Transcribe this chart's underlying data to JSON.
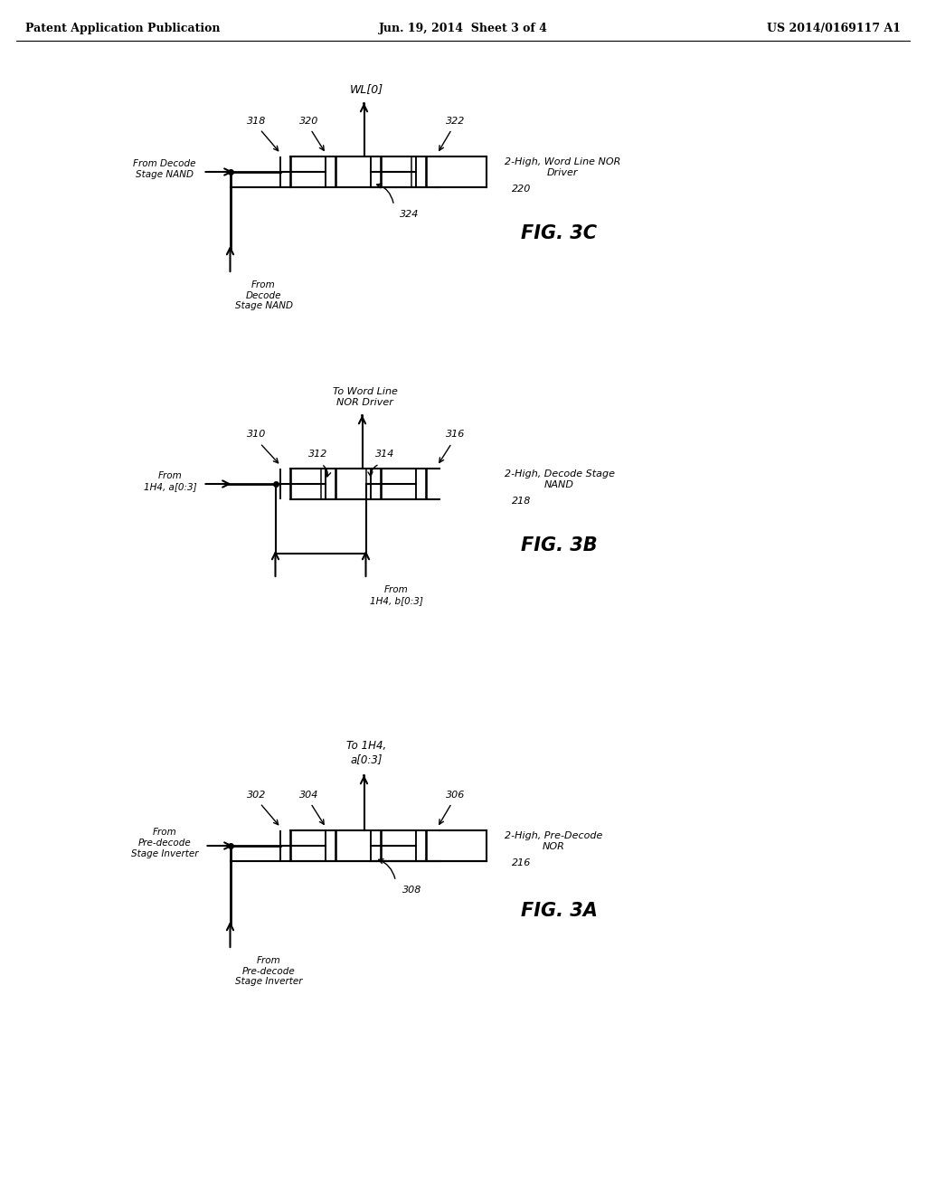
{
  "header_left": "Patent Application Publication",
  "header_mid": "Jun. 19, 2014  Sheet 3 of 4",
  "header_right": "US 2014/0169117 A1",
  "fig3c": {
    "label": "FIG. 3C",
    "circuit_label": "2-High, Word Line NOR\nDriver",
    "circuit_num": "220",
    "ref1": "318",
    "ref2": "320",
    "ref3": "322",
    "ref4": "324",
    "input1": "From Decode\nStage NAND",
    "input2": "From\nDecode\nStage NAND",
    "output": "WL[0]"
  },
  "fig3b": {
    "label": "FIG. 3B",
    "circuit_label": "2-High, Decode Stage\nNAND",
    "circuit_num": "218",
    "ref1": "310",
    "ref2": "312",
    "ref3": "314",
    "ref4": "316",
    "input1": "From\n1H4, a[0:3]",
    "input2": "From\n1H4, b[0:3]",
    "output": "To Word Line\nNOR Driver"
  },
  "fig3a": {
    "label": "FIG. 3A",
    "circuit_label": "2-High, Pre-Decode\nNOR",
    "circuit_num": "216",
    "ref1": "302",
    "ref2": "304",
    "ref3": "306",
    "ref4": "308",
    "input1": "From\nPre-decode\nStage Inverter",
    "input2": "From\nPre-decode\nStage Inverter",
    "output": "To 1H4,\na[0:3]"
  }
}
